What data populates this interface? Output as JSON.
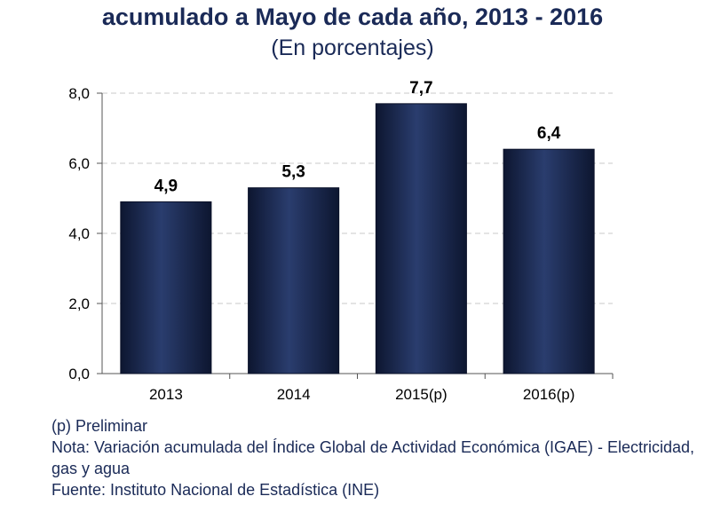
{
  "chart_data": {
    "type": "bar",
    "title": "acumulado a Mayo de cada año, 2013 - 2016",
    "subtitle": "(En porcentajes)",
    "categories": [
      "2013",
      "2014",
      "2015(p)",
      "2016(p)"
    ],
    "values": [
      4.9,
      5.3,
      7.7,
      6.4
    ],
    "value_labels": [
      "4,9",
      "5,3",
      "7,7",
      "6,4"
    ],
    "ylim": [
      0,
      8
    ],
    "yticks": [
      "0,0",
      "2,0",
      "4,0",
      "6,0",
      "8,0"
    ],
    "grid": true,
    "bar_color": "#1c2b52",
    "xlabel": "",
    "ylabel": ""
  },
  "notes": {
    "preliminar": "(p) Preliminar",
    "nota": "Nota: Variación acumulada del Índice Global de Actividad Económica (IGAE) - Electricidad, gas y agua",
    "fuente": "Fuente: Instituto Nacional de Estadística (INE)"
  }
}
